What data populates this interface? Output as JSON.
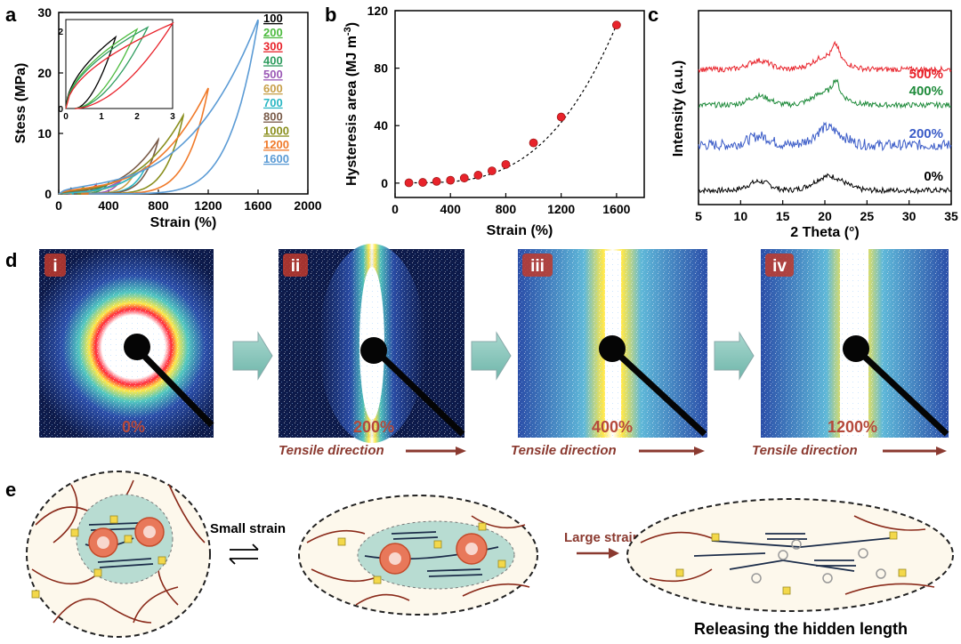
{
  "panel_labels": [
    "a",
    "b",
    "c",
    "d",
    "e"
  ],
  "chart_data": [
    {
      "id": "a",
      "type": "line",
      "xlabel": "Strain (%)",
      "ylabel": "Stess (MPa)",
      "xlim": [
        0,
        2000
      ],
      "ylim": [
        0,
        30
      ],
      "xticks": [
        0,
        400,
        800,
        1200,
        1600,
        2000
      ],
      "yticks": [
        0,
        10,
        20,
        30
      ],
      "legend_position": "right",
      "series": [
        {
          "name": "100",
          "color": "#000000",
          "max_strain": 100,
          "max_stress": 0.9
        },
        {
          "name": "200",
          "color": "#4dbb3f",
          "max_strain": 200,
          "max_stress": 1.1
        },
        {
          "name": "300",
          "color": "#e8232b",
          "max_strain": 300,
          "max_stress": 1.4
        },
        {
          "name": "400",
          "color": "#2e9c5e",
          "max_strain": 400,
          "max_stress": 1.7
        },
        {
          "name": "500",
          "color": "#9b59b6",
          "max_strain": 500,
          "max_stress": 2.2
        },
        {
          "name": "600",
          "color": "#c8a04a",
          "max_strain": 600,
          "max_stress": 3.0
        },
        {
          "name": "700",
          "color": "#2bb7c4",
          "max_strain": 700,
          "max_stress": 4.5
        },
        {
          "name": "800",
          "color": "#7a5c4a",
          "max_strain": 800,
          "max_stress": 9.0
        },
        {
          "name": "1000",
          "color": "#8a8f1e",
          "max_strain": 1000,
          "max_stress": 13.0
        },
        {
          "name": "1200",
          "color": "#f07a2a",
          "max_strain": 1200,
          "max_stress": 17.5
        },
        {
          "name": "1600",
          "color": "#5b9bd5",
          "max_strain": 1600,
          "max_stress": 28.8
        }
      ],
      "inset": {
        "xlim": [
          0,
          3
        ],
        "ylim": [
          0,
          2.3
        ],
        "xticks": [
          0,
          1,
          2,
          3
        ],
        "yticks": [
          0,
          2
        ],
        "series": [
          {
            "color": "#000000",
            "max_strain": 1.4,
            "max_stress": 1.85
          },
          {
            "color": "#4dbb3f",
            "max_strain": 2.0,
            "max_stress": 2.05
          },
          {
            "color": "#2e9c5e",
            "max_strain": 2.3,
            "max_stress": 2.1
          },
          {
            "color": "#e8232b",
            "max_strain": 3.0,
            "max_stress": 2.2
          }
        ]
      }
    },
    {
      "id": "b",
      "type": "scatter",
      "xlabel": "Strain (%)",
      "ylabel": "Hysteresis area (MJ m",
      "ylabel_sup": "-3",
      "ylabel_close": ")",
      "xlim": [
        0,
        1800
      ],
      "ylim": [
        -10,
        120
      ],
      "xticks": [
        0,
        400,
        800,
        1200,
        1600
      ],
      "yticks": [
        0,
        40,
        80,
        120
      ],
      "color": "#e8232b",
      "x": [
        100,
        200,
        300,
        400,
        500,
        600,
        700,
        800,
        1000,
        1200,
        1600
      ],
      "y": [
        0.2,
        0.5,
        1.2,
        2.0,
        3.5,
        5.5,
        8.5,
        13,
        28,
        46,
        110
      ]
    },
    {
      "id": "c",
      "type": "line",
      "xlabel": "2 Theta (°)",
      "ylabel": "Intensity (a.u.)",
      "xlim": [
        5,
        35
      ],
      "xticks": [
        5,
        10,
        15,
        20,
        25,
        30,
        35
      ],
      "series": [
        {
          "name": "500%",
          "color": "#e8232b",
          "offset": 3.0
        },
        {
          "name": "400%",
          "color": "#1f8b3b",
          "offset": 2.0
        },
        {
          "name": "200%",
          "color": "#3a5bc7",
          "offset": 1.0
        },
        {
          "name": "0%",
          "color": "#000000",
          "offset": 0.0
        }
      ]
    }
  ],
  "panel_d": {
    "images": [
      {
        "roman": "i",
        "strain": "0%"
      },
      {
        "roman": "ii",
        "strain": "200%"
      },
      {
        "roman": "iii",
        "strain": "400%"
      },
      {
        "roman": "iv",
        "strain": "1200%"
      }
    ],
    "tensile_label": "Tensile direction"
  },
  "panel_e": {
    "small_strain": "Small strain",
    "large_strain": "Large strain",
    "caption": "Releasing the hidden length"
  }
}
